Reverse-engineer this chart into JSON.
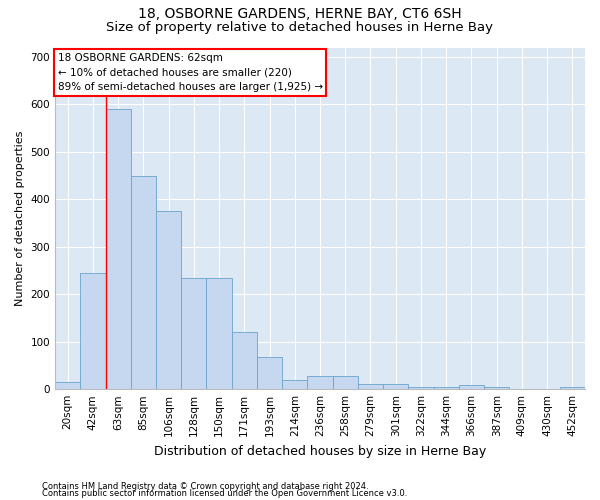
{
  "title": "18, OSBORNE GARDENS, HERNE BAY, CT6 6SH",
  "subtitle": "Size of property relative to detached houses in Herne Bay",
  "xlabel": "Distribution of detached houses by size in Herne Bay",
  "ylabel": "Number of detached properties",
  "footer_line1": "Contains HM Land Registry data © Crown copyright and database right 2024.",
  "footer_line2": "Contains public sector information licensed under the Open Government Licence v3.0.",
  "bar_labels": [
    "20sqm",
    "42sqm",
    "63sqm",
    "85sqm",
    "106sqm",
    "128sqm",
    "150sqm",
    "171sqm",
    "193sqm",
    "214sqm",
    "236sqm",
    "258sqm",
    "279sqm",
    "301sqm",
    "322sqm",
    "344sqm",
    "366sqm",
    "387sqm",
    "409sqm",
    "430sqm",
    "452sqm"
  ],
  "bar_values": [
    15,
    245,
    590,
    450,
    375,
    235,
    235,
    120,
    68,
    20,
    28,
    28,
    10,
    10,
    5,
    5,
    8,
    5,
    0,
    0,
    5
  ],
  "bar_color": "#c5d8f0",
  "bar_edge_color": "#6ba3cc",
  "plot_bg_color": "#dde8f5",
  "annotation_text": "18 OSBORNE GARDENS: 62sqm\n← 10% of detached houses are smaller (220)\n89% of semi-detached houses are larger (1,925) →",
  "annotation_box_color": "white",
  "annotation_box_edge": "red",
  "red_line_x": 1.5,
  "ylim": [
    0,
    720
  ],
  "yticks": [
    0,
    100,
    200,
    300,
    400,
    500,
    600,
    700
  ],
  "title_fontsize": 10,
  "subtitle_fontsize": 9.5,
  "xlabel_fontsize": 9,
  "ylabel_fontsize": 8,
  "tick_fontsize": 7.5,
  "footer_fontsize": 6,
  "annot_fontsize": 7.5
}
